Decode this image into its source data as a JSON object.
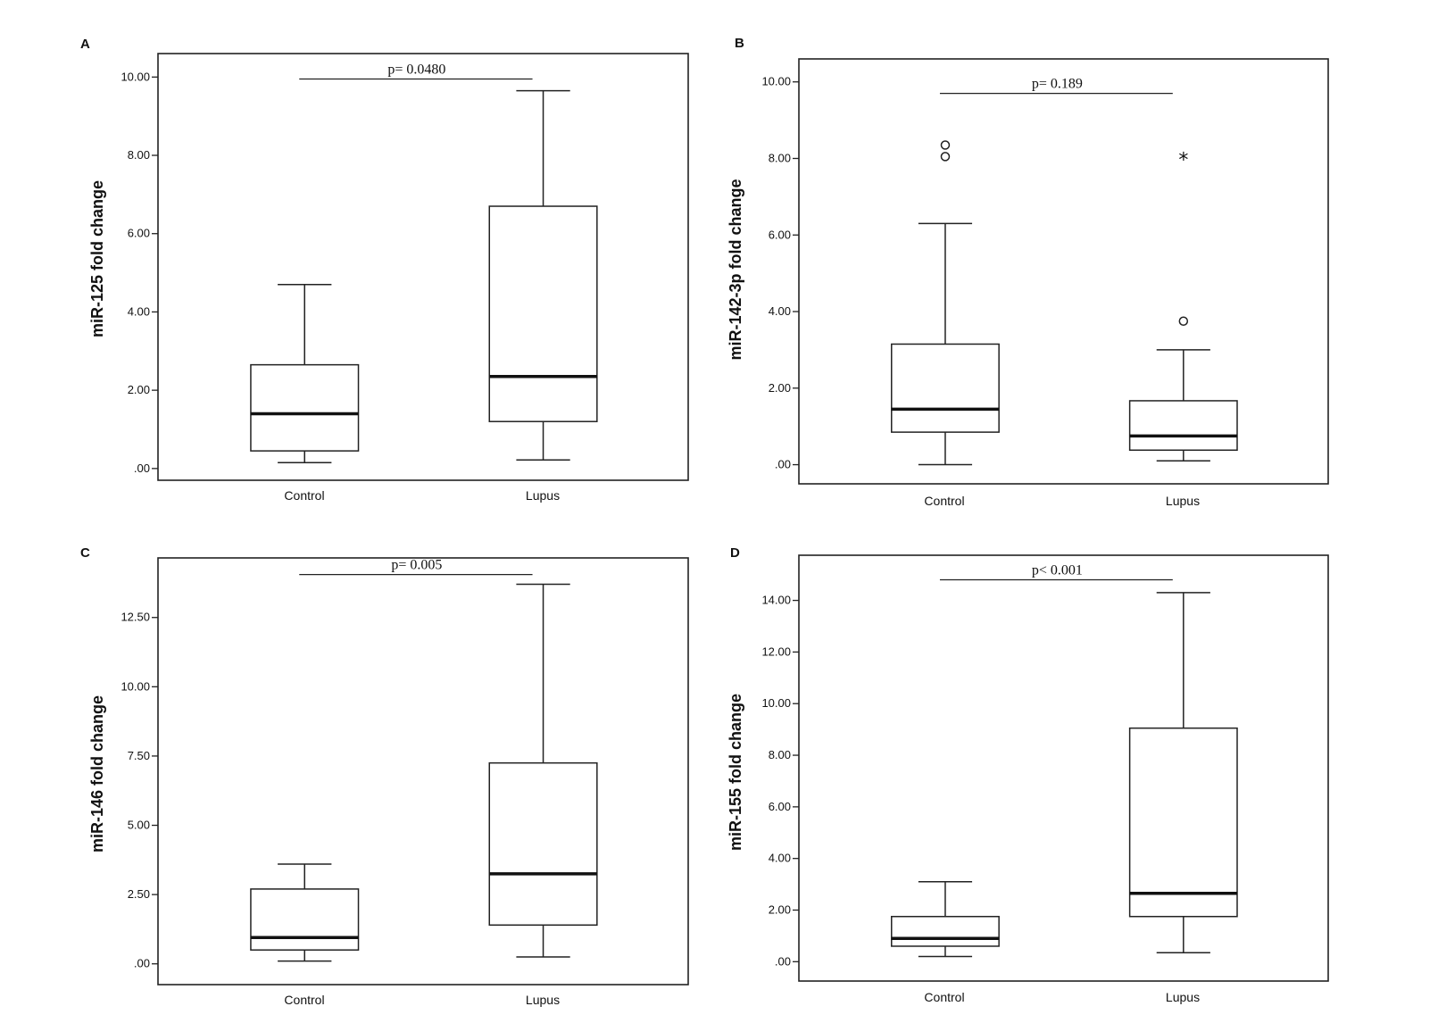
{
  "chart_data": [
    {
      "type": "box",
      "panel": "A",
      "ylabel": "miR-125 fold change",
      "ylim": [
        -0.3,
        10.6
      ],
      "yticks": [
        0,
        2,
        4,
        6,
        8,
        10
      ],
      "ytick_labels": [
        ".00",
        "2.00",
        "4.00",
        "6.00",
        "8.00",
        "10.00"
      ],
      "categories": [
        "Control",
        "Lupus"
      ],
      "boxes": [
        {
          "category": "Control",
          "whisker_low": 0.15,
          "q1": 0.45,
          "median": 1.4,
          "q3": 2.65,
          "whisker_high": 4.7,
          "outliers": [],
          "extremes": []
        },
        {
          "category": "Lupus",
          "whisker_low": 0.22,
          "q1": 1.2,
          "median": 2.35,
          "q3": 6.7,
          "whisker_high": 9.65,
          "outliers": [],
          "extremes": []
        }
      ],
      "significance": {
        "label": "p= 0.0480",
        "y": 9.95
      }
    },
    {
      "type": "box",
      "panel": "B",
      "ylabel": "miR-142-3p fold change",
      "ylim": [
        -0.5,
        10.6
      ],
      "yticks": [
        0,
        2,
        4,
        6,
        8,
        10
      ],
      "ytick_labels": [
        ".00",
        "2.00",
        "4.00",
        "6.00",
        "8.00",
        "10.00"
      ],
      "categories": [
        "Control",
        "Lupus"
      ],
      "boxes": [
        {
          "category": "Control",
          "whisker_low": 0.0,
          "q1": 0.85,
          "median": 1.45,
          "q3": 3.15,
          "whisker_high": 6.3,
          "outliers": [
            8.05,
            8.35
          ],
          "extremes": []
        },
        {
          "category": "Lupus",
          "whisker_low": 0.1,
          "q1": 0.38,
          "median": 0.75,
          "q3": 1.67,
          "whisker_high": 3.0,
          "outliers": [
            3.75
          ],
          "extremes": [
            8.0
          ]
        }
      ],
      "extreme_symbol": "*",
      "significance": {
        "label": "p= 0.189",
        "y": 9.7
      }
    },
    {
      "type": "box",
      "panel": "C",
      "ylabel": "miR-146 fold change",
      "ylim": [
        -0.75,
        14.65
      ],
      "yticks": [
        0,
        2.5,
        5,
        7.5,
        10,
        12.5
      ],
      "ytick_labels": [
        ".00",
        "2.50",
        "5.00",
        "7.50",
        "10.00",
        "12.50"
      ],
      "categories": [
        "Control",
        "Lupus"
      ],
      "boxes": [
        {
          "category": "Control",
          "whisker_low": 0.1,
          "q1": 0.5,
          "median": 0.95,
          "q3": 2.7,
          "whisker_high": 3.6,
          "outliers": [],
          "extremes": []
        },
        {
          "category": "Lupus",
          "whisker_low": 0.25,
          "q1": 1.4,
          "median": 3.25,
          "q3": 7.25,
          "whisker_high": 13.7,
          "outliers": [],
          "extremes": []
        }
      ],
      "significance": {
        "label": "p= 0.005",
        "y": 14.05
      }
    },
    {
      "type": "box",
      "panel": "D",
      "ylabel": "miR-155 fold change",
      "ylim": [
        -0.75,
        15.75
      ],
      "yticks": [
        0,
        2,
        4,
        6,
        8,
        10,
        12,
        14
      ],
      "ytick_labels": [
        ".00",
        "2.00",
        "4.00",
        "6.00",
        "8.00",
        "10.00",
        "12.00",
        "14.00"
      ],
      "categories": [
        "Control",
        "Lupus"
      ],
      "boxes": [
        {
          "category": "Control",
          "whisker_low": 0.2,
          "q1": 0.6,
          "median": 0.9,
          "q3": 1.75,
          "whisker_high": 3.1,
          "outliers": [],
          "extremes": []
        },
        {
          "category": "Lupus",
          "whisker_low": 0.35,
          "q1": 1.75,
          "median": 2.65,
          "q3": 9.05,
          "whisker_high": 14.3,
          "outliers": [],
          "extremes": []
        }
      ],
      "significance": {
        "label": "p< 0.001",
        "y": 14.8
      }
    }
  ]
}
